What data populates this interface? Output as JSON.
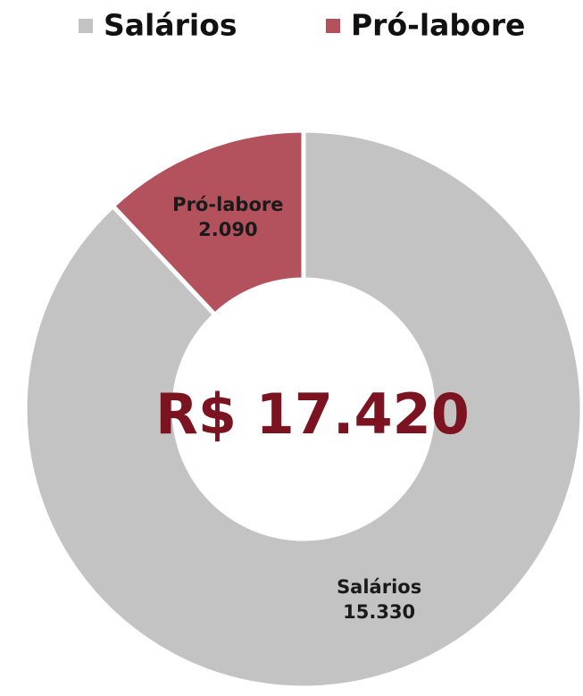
{
  "chart_data": {
    "type": "donut",
    "categories": [
      "Salários",
      "Pró-labore"
    ],
    "values": [
      15330,
      2090
    ],
    "value_labels": [
      "15.330",
      "2.090"
    ],
    "colors": [
      "#c3c3c3",
      "#b3525c"
    ],
    "annotation": "R$ 17.420",
    "legend": "top"
  }
}
